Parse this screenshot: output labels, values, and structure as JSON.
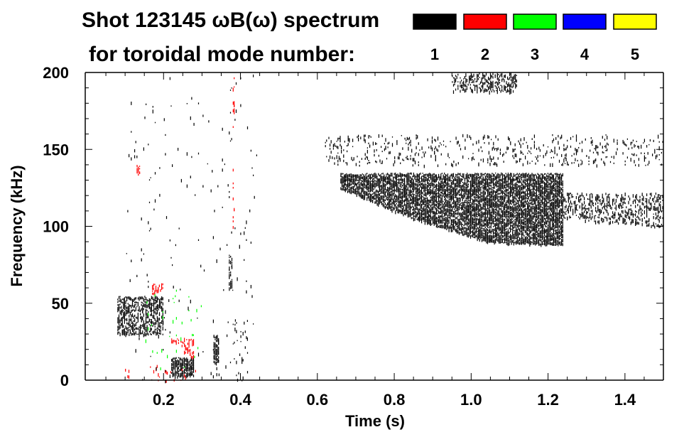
{
  "chart_data": {
    "type": "heatmap",
    "title": "Shot 123145 ωB(ω) spectrum",
    "legend_title": "for toroidal mode number:",
    "legend": [
      {
        "mode": "1",
        "color": "#000000"
      },
      {
        "mode": "2",
        "color": "#ff0000"
      },
      {
        "mode": "3",
        "color": "#00ff00"
      },
      {
        "mode": "4",
        "color": "#0000ff"
      },
      {
        "mode": "5",
        "color": "#ffff00"
      }
    ],
    "xlabel": "Time (s)",
    "ylabel": "Frequency (kHz)",
    "xlim": [
      0,
      1.5
    ],
    "ylim": [
      0,
      200
    ],
    "xticks": [
      "0.2",
      "0.4",
      "0.6",
      "0.8",
      "1.0",
      "1.2",
      "1.4"
    ],
    "xtick_values": [
      0.2,
      0.4,
      0.6,
      0.8,
      1.0,
      1.2,
      1.4
    ],
    "yticks": [
      "0",
      "50",
      "100",
      "150",
      "200"
    ],
    "ytick_values": [
      0,
      50,
      100,
      150,
      200
    ],
    "features": [
      {
        "mode": 1,
        "t": [
          0.66,
          1.24
        ],
        "f_low": [
          125,
          105,
          90,
          88
        ],
        "f_high": 135,
        "density": 0.9
      },
      {
        "mode": 1,
        "t": [
          1.24,
          1.5
        ],
        "f_low": [
          105,
          100
        ],
        "f_high": 122,
        "density": 0.35
      },
      {
        "mode": 1,
        "t": [
          0.62,
          1.5
        ],
        "f_low": [
          140,
          140
        ],
        "f_high": 160,
        "density": 0.12
      },
      {
        "mode": 1,
        "t": [
          0.95,
          1.12
        ],
        "f_low": [
          188,
          188
        ],
        "f_high": 200,
        "density": 0.4
      },
      {
        "mode": 1,
        "t": [
          0.08,
          0.2
        ],
        "f_low": [
          30,
          30
        ],
        "f_high": 55,
        "density": 0.6
      },
      {
        "mode": 1,
        "t": [
          0.22,
          0.28
        ],
        "f_low": [
          3,
          3
        ],
        "f_high": 15,
        "density": 0.9
      },
      {
        "mode": 1,
        "t": [
          0.33,
          0.345
        ],
        "f_low": [
          12,
          12
        ],
        "f_high": 30,
        "density": 0.9
      },
      {
        "mode": 1,
        "t": [
          0.37,
          0.38
        ],
        "f_low": [
          60,
          60
        ],
        "f_high": 82,
        "density": 0.6
      },
      {
        "mode": 1,
        "t": [
          0.38,
          0.42
        ],
        "f_low": [
          0,
          0
        ],
        "f_high": 40,
        "density": 0.05
      },
      {
        "mode": 2,
        "t": [
          0.17,
          0.2
        ],
        "f_low": [
          56,
          60
        ],
        "f_high": 63,
        "density": 0.7
      },
      {
        "mode": 2,
        "t": [
          0.22,
          0.28
        ],
        "f_low": [
          25,
          14
        ],
        "f_high": 28,
        "density": 0.4
      },
      {
        "mode": 2,
        "t": [
          0.13,
          0.14
        ],
        "f_low": [
          134,
          134
        ],
        "f_high": 140,
        "density": 0.6
      },
      {
        "mode": 2,
        "t": [
          0.38,
          0.385
        ],
        "f_low": [
          100,
          100
        ],
        "f_high": 200,
        "density": 0.15
      },
      {
        "mode": 2,
        "t": [
          0.1,
          0.3
        ],
        "f_low": [
          0,
          0
        ],
        "f_high": 10,
        "density": 0.05
      },
      {
        "mode": 3,
        "t": [
          0.15,
          0.3
        ],
        "f_low": [
          5,
          5
        ],
        "f_high": 60,
        "density": 0.02
      },
      {
        "mode": 1,
        "t": [
          0.1,
          0.45
        ],
        "f_low": [
          0,
          0
        ],
        "f_high": 200,
        "density": 0.01
      }
    ]
  }
}
